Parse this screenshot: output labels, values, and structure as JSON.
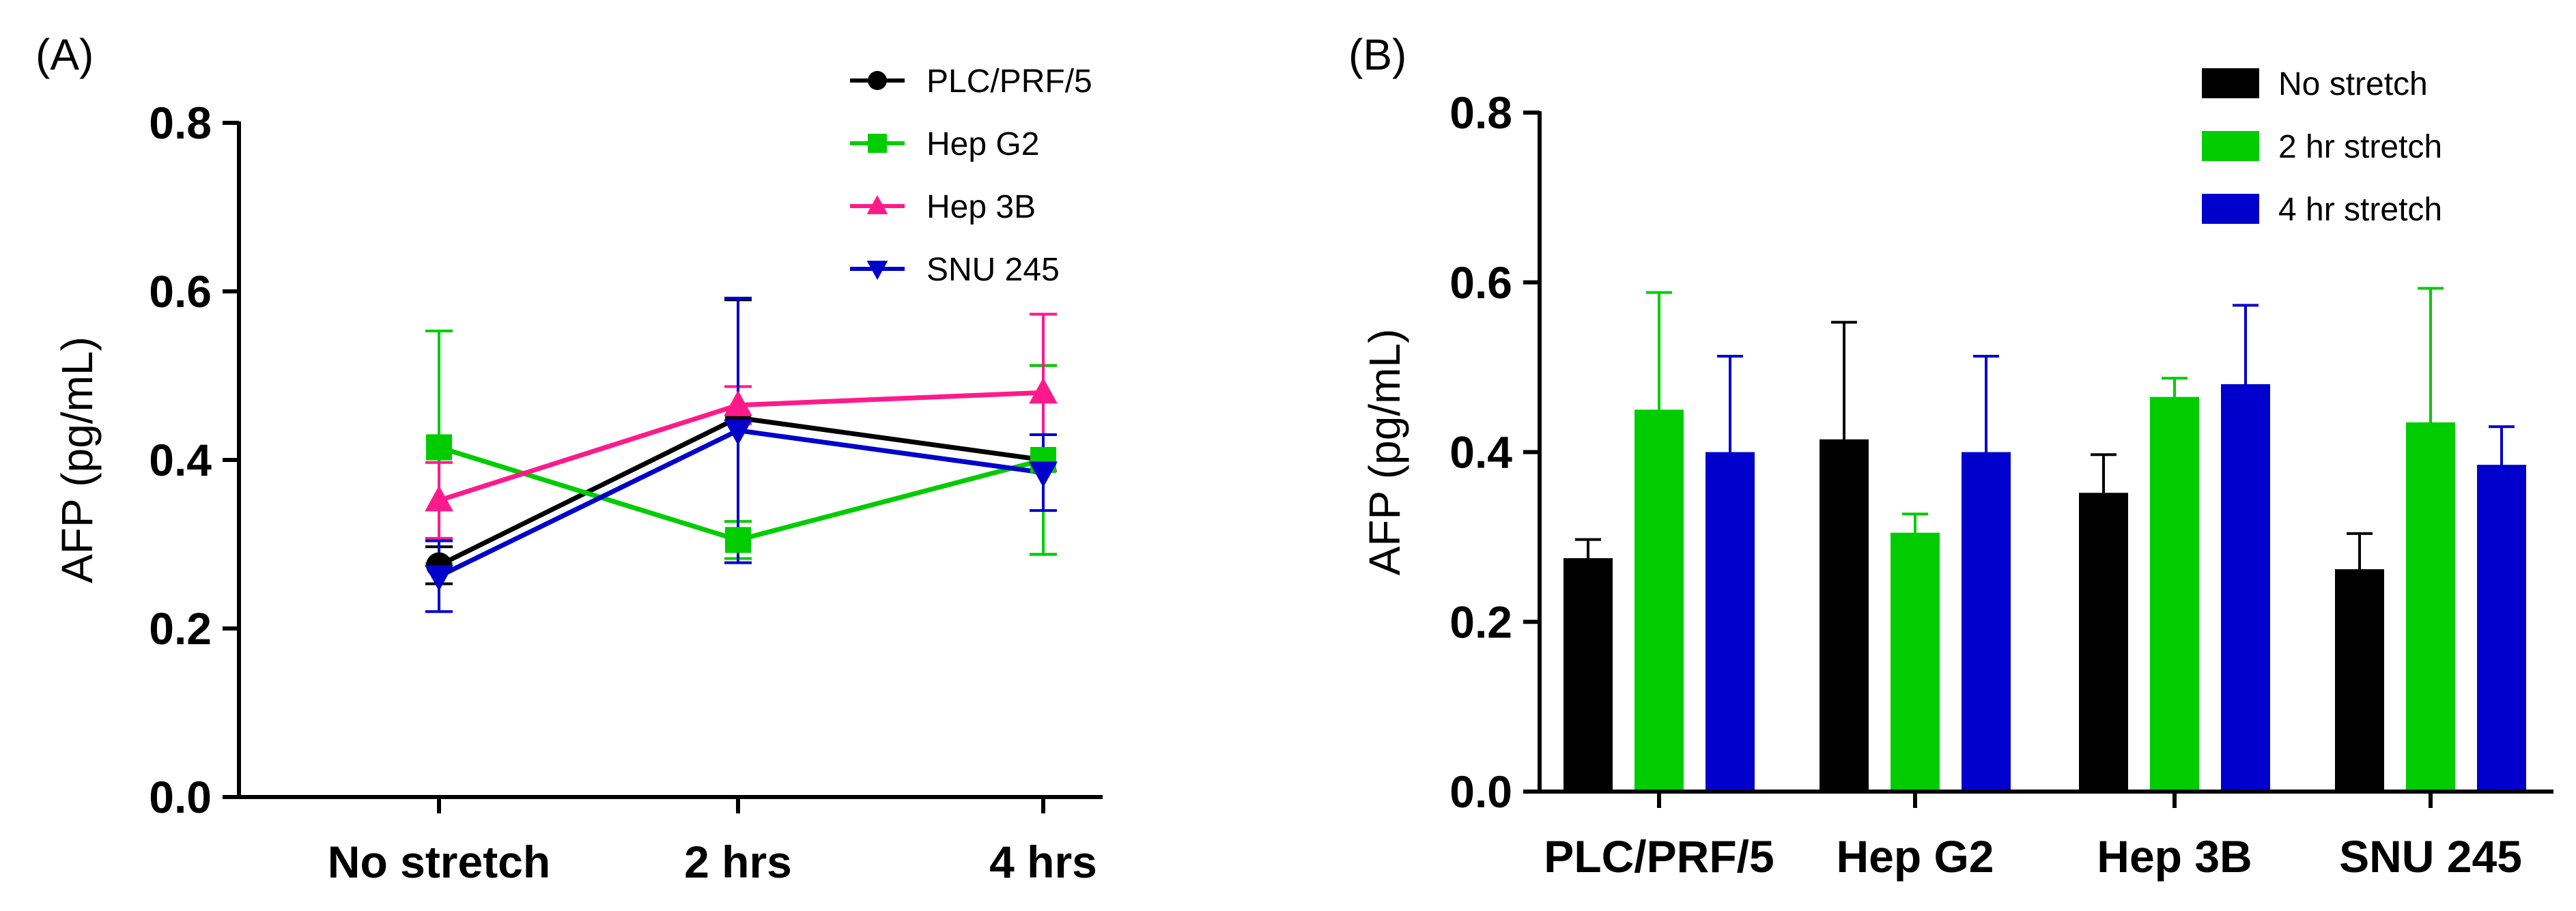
{
  "chart_data": [
    {
      "type": "line",
      "panel_label": "(A)",
      "categories": [
        "No stretch",
        "2 hrs",
        "4 hrs"
      ],
      "ylabel": "AFP (pg/mL)",
      "ylim": [
        0,
        0.8
      ],
      "yticks": [
        "0.0",
        "0.2",
        "0.4",
        "0.6",
        "0.8"
      ],
      "legend_position": "top-right",
      "series": [
        {
          "name": "PLC/PRF/5",
          "color": "#000000",
          "marker": "circle",
          "values": [
            0.275,
            0.45,
            0.4
          ],
          "err": [
            0.022,
            0.14,
            0.112
          ]
        },
        {
          "name": "Hep G2",
          "color": "#00cc00",
          "marker": "square",
          "values": [
            0.415,
            0.305,
            0.4
          ],
          "err": [
            0.138,
            0.022,
            0.112
          ]
        },
        {
          "name": "Hep 3B",
          "color": "#ff1a8c",
          "marker": "triangle-up",
          "values": [
            0.352,
            0.465,
            0.48
          ],
          "err": [
            0.045,
            0.022,
            0.093
          ]
        },
        {
          "name": "SNU 245",
          "color": "#0000cc",
          "marker": "triangle-down",
          "values": [
            0.262,
            0.435,
            0.385
          ],
          "err": [
            0.042,
            0.157,
            0.045
          ]
        }
      ]
    },
    {
      "type": "bar",
      "panel_label": "(B)",
      "categories": [
        "PLC/PRF/5",
        "Hep G2",
        "Hep 3B",
        "SNU 245"
      ],
      "ylabel": "AFP (pg/mL)",
      "ylim": [
        0,
        0.8
      ],
      "yticks": [
        "0.0",
        "0.2",
        "0.4",
        "0.6",
        "0.8"
      ],
      "legend_position": "top-right",
      "series": [
        {
          "name": "No stretch",
          "color": "#000000",
          "values": [
            0.275,
            0.415,
            0.352,
            0.262
          ],
          "err": [
            0.022,
            0.138,
            0.045,
            0.042
          ]
        },
        {
          "name": "2 hr stretch",
          "color": "#00cc00",
          "values": [
            0.45,
            0.305,
            0.465,
            0.435
          ],
          "err": [
            0.138,
            0.022,
            0.022,
            0.158
          ]
        },
        {
          "name": "4 hr stretch",
          "color": "#0000cc",
          "values": [
            0.4,
            0.4,
            0.48,
            0.385
          ],
          "err": [
            0.113,
            0.113,
            0.093,
            0.045
          ]
        }
      ]
    }
  ]
}
